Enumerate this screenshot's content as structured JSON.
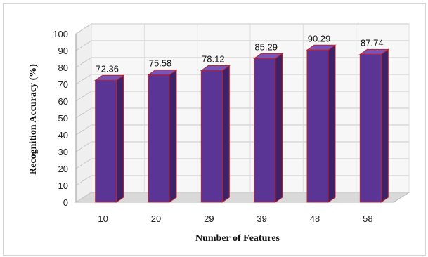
{
  "chart_data": {
    "type": "bar",
    "categories": [
      "10",
      "20",
      "29",
      "39",
      "48",
      "58"
    ],
    "values": [
      72.36,
      75.58,
      78.12,
      85.29,
      90.29,
      87.74
    ],
    "data_labels": [
      "72.36",
      "75.58",
      "78.12",
      "85.29",
      "90.29",
      "87.74"
    ],
    "xlabel": "Number of Features",
    "ylabel": "Recognition Accuracy (%)",
    "ylim": [
      0,
      100
    ],
    "yticks": [
      "0",
      "10",
      "20",
      "30",
      "40",
      "50",
      "60",
      "70",
      "80",
      "90",
      "100"
    ],
    "grid": true,
    "legend": "none",
    "style": "3d-column",
    "colors": {
      "bar_front": "#5b3596",
      "bar_side": "#3e2268",
      "bar_top": "#7a55b8",
      "bar_edge": "#c0202a",
      "grid": "#c8c8c8",
      "wall": "#f7f7f7",
      "floor": "#d9d9d9"
    }
  }
}
